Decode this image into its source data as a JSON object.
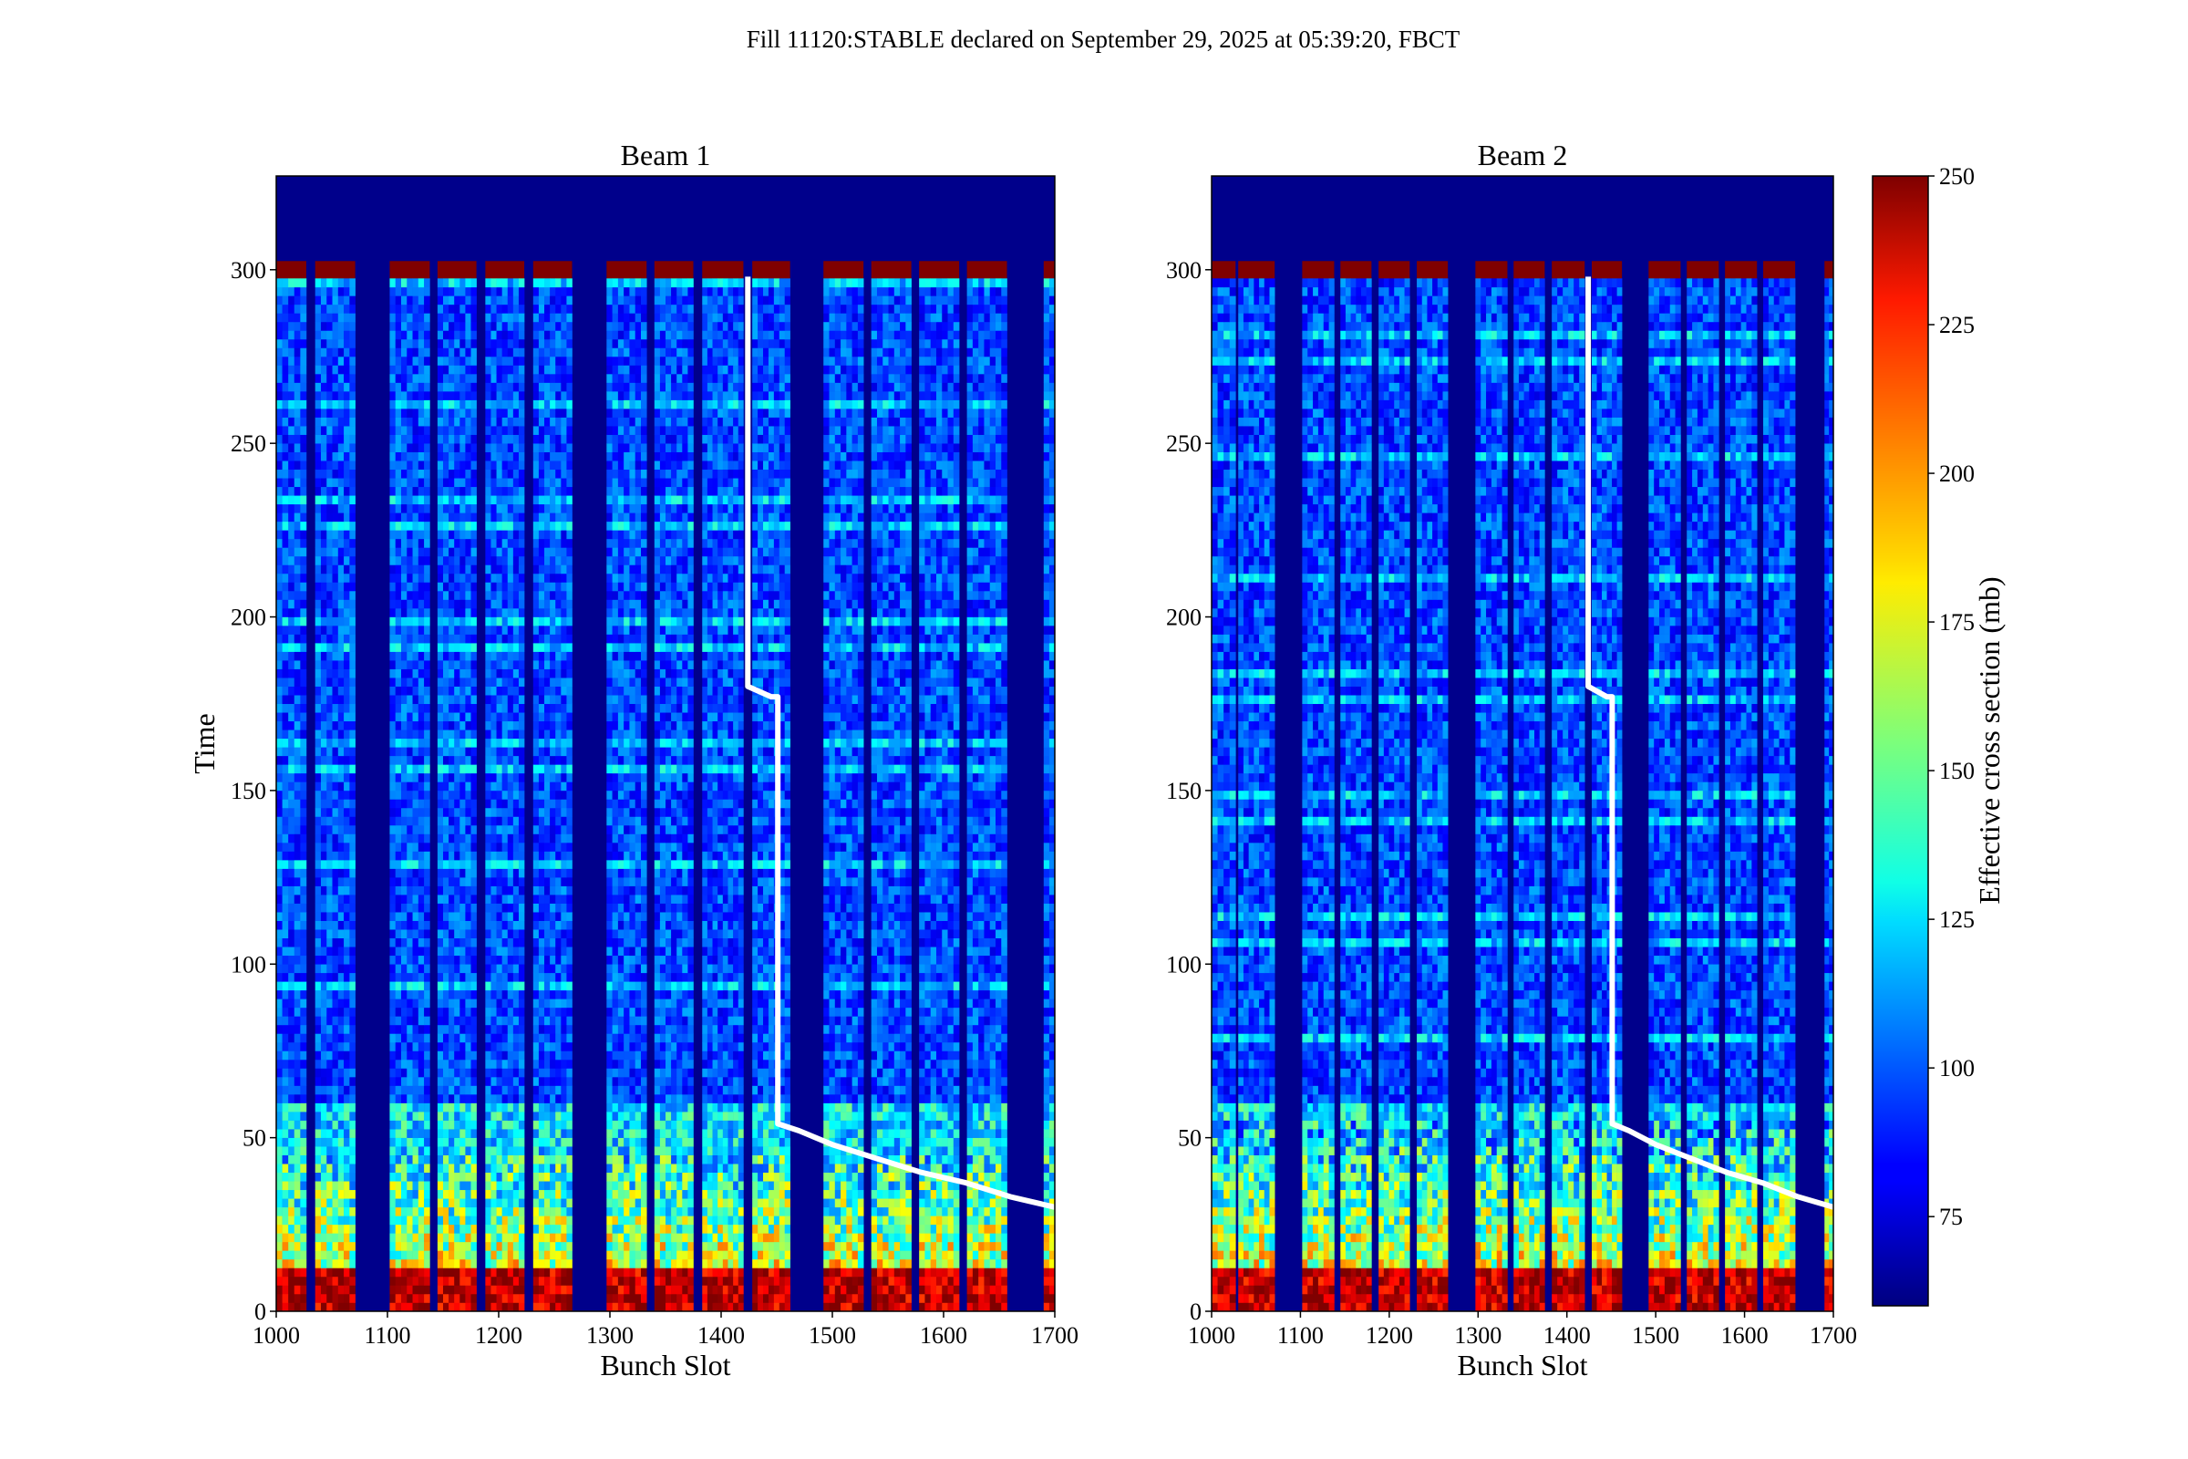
{
  "suptitle": "Fill 11120:STABLE declared on September 29, 2025 at 05:39:20, FBCT",
  "colors": {
    "background_fill": "#00008b",
    "trace_line": "#ffffff",
    "colormap": "jet"
  },
  "chart_data": [
    {
      "type": "heatmap",
      "title": "Beam 1",
      "xlabel": "Bunch Slot",
      "ylabel": "Time",
      "xlim": [
        1000,
        1700
      ],
      "ylim": [
        0,
        327
      ],
      "xticks": [
        1000,
        1100,
        1200,
        1300,
        1400,
        1500,
        1600,
        1700
      ],
      "yticks": [
        0,
        50,
        100,
        150,
        200,
        250,
        300
      ],
      "filled_slot_bands": [
        [
          1000,
          1027
        ],
        [
          1035,
          1071
        ],
        [
          1102,
          1138
        ],
        [
          1145,
          1180
        ],
        [
          1188,
          1223
        ],
        [
          1231,
          1266
        ],
        [
          1297,
          1333
        ],
        [
          1340,
          1375
        ],
        [
          1383,
          1420
        ],
        [
          1428,
          1462
        ],
        [
          1492,
          1528
        ],
        [
          1535,
          1571
        ],
        [
          1578,
          1614
        ],
        [
          1621,
          1657
        ],
        [
          1690,
          1700
        ]
      ],
      "data_end_time": 300,
      "bottom_hot_until_time": 12,
      "warm_region_until_time": 45,
      "values_legend": "low ~85-110 mb after time 50, high (250 mb) near time 0",
      "trace": {
        "x": [
          1424,
          1424,
          1424,
          1445,
          1451,
          1451,
          1451,
          1470,
          1500,
          1540,
          1580,
          1620,
          1660,
          1700
        ],
        "y": [
          298,
          250,
          180,
          177,
          177,
          120,
          54,
          52,
          48,
          44,
          40,
          37,
          33,
          30
        ]
      }
    },
    {
      "type": "heatmap",
      "title": "Beam 2",
      "xlabel": "Bunch Slot",
      "ylabel": "",
      "xlim": [
        1000,
        1700
      ],
      "ylim": [
        0,
        327
      ],
      "xticks": [
        1000,
        1100,
        1200,
        1300,
        1400,
        1500,
        1600,
        1700
      ],
      "yticks": [
        0,
        50,
        100,
        150,
        200,
        250,
        300
      ],
      "filled_slot_bands": [
        [
          1000,
          1027
        ],
        [
          1030,
          1071
        ],
        [
          1102,
          1138
        ],
        [
          1145,
          1180
        ],
        [
          1188,
          1223
        ],
        [
          1231,
          1266
        ],
        [
          1297,
          1333
        ],
        [
          1340,
          1375
        ],
        [
          1383,
          1420
        ],
        [
          1428,
          1462
        ],
        [
          1492,
          1528
        ],
        [
          1535,
          1571
        ],
        [
          1578,
          1614
        ],
        [
          1621,
          1657
        ],
        [
          1690,
          1700
        ]
      ],
      "data_end_time": 300,
      "bottom_hot_until_time": 12,
      "warm_region_until_time": 55,
      "trace": {
        "x": [
          1424,
          1424,
          1424,
          1445,
          1451,
          1451,
          1451,
          1470,
          1500,
          1540,
          1580,
          1620,
          1660,
          1700
        ],
        "y": [
          298,
          250,
          180,
          177,
          177,
          120,
          54,
          52,
          48,
          44,
          40,
          37,
          33,
          30
        ]
      }
    }
  ],
  "colorbar": {
    "label": "Effective cross section (mb)",
    "vmin": 60,
    "vmax": 250,
    "ticks": [
      75,
      100,
      125,
      150,
      175,
      200,
      225,
      250
    ]
  }
}
